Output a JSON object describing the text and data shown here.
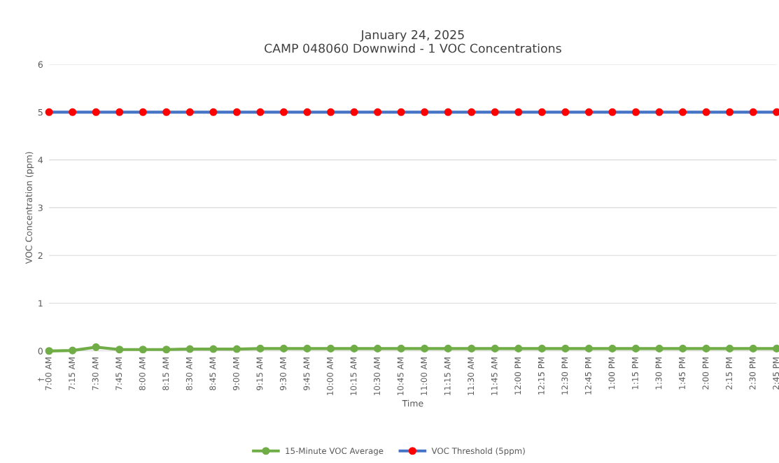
{
  "chart_data": {
    "type": "line",
    "title": "January 24, 2025\nCAMP 048060 Downwind - 1 VOC Concentrations",
    "xlabel": "Time",
    "ylabel": "VOC Concentration (ppm)",
    "categories": [
      "7:00 AM",
      "7:15 AM",
      "7:30 AM",
      "7:45 AM",
      "8:00 AM",
      "8:15 AM",
      "8:30 AM",
      "8:45 AM",
      "9:00 AM",
      "9:15 AM",
      "9:30 AM",
      "9:45 AM",
      "10:00 AM",
      "10:15 AM",
      "10:30 AM",
      "10:45 AM",
      "11:00 AM",
      "11:15 AM",
      "11:30 AM",
      "11:45 AM",
      "12:00 PM",
      "12:15 PM",
      "12:30 PM",
      "12:45 PM",
      "1:00 PM",
      "1:15 PM",
      "1:30 PM",
      "1:45 PM",
      "2:00 PM",
      "2:15 PM",
      "2:30 PM",
      "2:45 PM"
    ],
    "series": [
      {
        "name": "15-Minute VOC Average",
        "color": "#70ad47",
        "values": [
          0.0,
          0.01,
          0.08,
          0.03,
          0.03,
          0.03,
          0.04,
          0.04,
          0.04,
          0.05,
          0.05,
          0.05,
          0.05,
          0.05,
          0.05,
          0.05,
          0.05,
          0.05,
          0.05,
          0.05,
          0.05,
          0.05,
          0.05,
          0.05,
          0.05,
          0.05,
          0.05,
          0.05,
          0.05,
          0.05,
          0.05,
          0.05
        ]
      },
      {
        "name": "VOC Threshold (5ppm)",
        "color": "#4472c4",
        "colors": [
          "#ff0000",
          "#ff0000",
          "#ff0000",
          "#ff0000",
          "#ff0000",
          "#ff0000",
          "#ff0000",
          "#ff0000",
          "#ff0000",
          "#ff0000",
          "#ff0000",
          "#ff0000",
          "#ff0000",
          "#ff0000",
          "#ff0000",
          "#ff0000",
          "#ff0000",
          "#ff0000",
          "#ff0000",
          "#ff0000",
          "#ff0000",
          "#ff0000",
          "#ff0000",
          "#ff0000",
          "#ff0000",
          "#ff0000",
          "#ff0000",
          "#ff0000",
          "#ff0000",
          "#ff0000",
          "#ff0000",
          "#ff0000"
        ],
        "values": [
          5,
          5,
          5,
          5,
          5,
          5,
          5,
          5,
          5,
          5,
          5,
          5,
          5,
          5,
          5,
          5,
          5,
          5,
          5,
          5,
          5,
          5,
          5,
          5,
          5,
          5,
          5,
          5,
          5,
          5,
          5,
          5
        ]
      }
    ],
    "ylim": [
      0,
      6
    ],
    "yticks": [
      0,
      1,
      2,
      3,
      4,
      5,
      6
    ],
    "grid": "y",
    "legend": "bottom",
    "marker": "circle",
    "line_style": "solid",
    "annotations": [
      "†"
    ]
  }
}
